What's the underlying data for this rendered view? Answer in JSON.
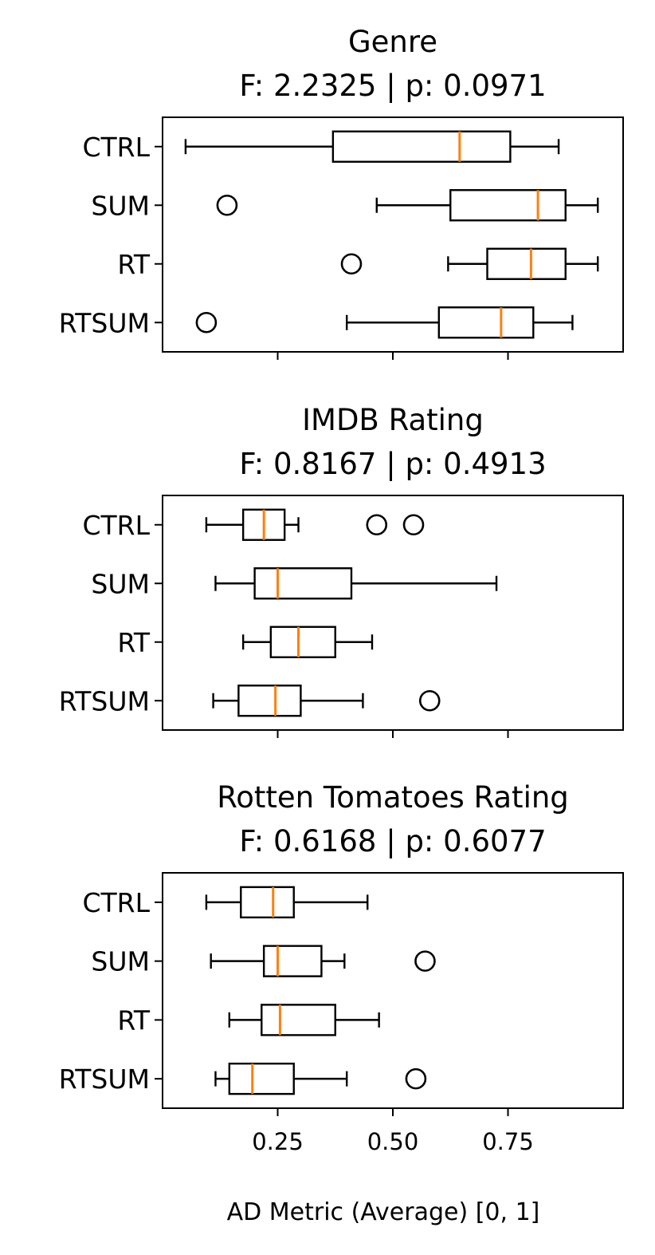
{
  "chart_data": [
    {
      "type": "boxplot",
      "title": "Genre",
      "subtitle": "F: 2.2325 | p: 0.0971",
      "categories": [
        "CTRL",
        "SUM",
        "RT",
        "RTSUM"
      ],
      "xlim": [
        0.0,
        1.0
      ],
      "xticks": [
        0.25,
        0.5,
        0.75
      ],
      "xtick_labels": [
        "0.25",
        "0.50",
        "0.75"
      ],
      "show_xtick_labels": false,
      "boxes": [
        {
          "label": "CTRL",
          "whisker_low": 0.05,
          "q1": 0.37,
          "median": 0.645,
          "q3": 0.755,
          "whisker_high": 0.86,
          "outliers": []
        },
        {
          "label": "SUM",
          "whisker_low": 0.465,
          "q1": 0.625,
          "median": 0.815,
          "q3": 0.875,
          "whisker_high": 0.945,
          "outliers": [
            0.14
          ]
        },
        {
          "label": "RT",
          "whisker_low": 0.62,
          "q1": 0.705,
          "median": 0.8,
          "q3": 0.875,
          "whisker_high": 0.945,
          "outliers": [
            0.41
          ]
        },
        {
          "label": "RTSUM",
          "whisker_low": 0.4,
          "q1": 0.6,
          "median": 0.735,
          "q3": 0.805,
          "whisker_high": 0.89,
          "outliers": [
            0.095
          ]
        }
      ]
    },
    {
      "type": "boxplot",
      "title": "IMDB Rating",
      "subtitle": "F: 0.8167 | p: 0.4913",
      "categories": [
        "CTRL",
        "SUM",
        "RT",
        "RTSUM"
      ],
      "xlim": [
        0.0,
        1.0
      ],
      "xticks": [
        0.25,
        0.5,
        0.75
      ],
      "xtick_labels": [
        "0.25",
        "0.50",
        "0.75"
      ],
      "show_xtick_labels": false,
      "boxes": [
        {
          "label": "CTRL",
          "whisker_low": 0.095,
          "q1": 0.175,
          "median": 0.22,
          "q3": 0.265,
          "whisker_high": 0.295,
          "outliers": [
            0.465,
            0.545
          ]
        },
        {
          "label": "SUM",
          "whisker_low": 0.115,
          "q1": 0.2,
          "median": 0.25,
          "q3": 0.41,
          "whisker_high": 0.725,
          "outliers": []
        },
        {
          "label": "RT",
          "whisker_low": 0.175,
          "q1": 0.235,
          "median": 0.295,
          "q3": 0.375,
          "whisker_high": 0.455,
          "outliers": []
        },
        {
          "label": "RTSUM",
          "whisker_low": 0.11,
          "q1": 0.165,
          "median": 0.245,
          "q3": 0.3,
          "whisker_high": 0.435,
          "outliers": [
            0.58
          ]
        }
      ]
    },
    {
      "type": "boxplot",
      "title": "Rotten Tomatoes Rating",
      "subtitle": "F: 0.6168 | p: 0.6077",
      "categories": [
        "CTRL",
        "SUM",
        "RT",
        "RTSUM"
      ],
      "xlim": [
        0.0,
        1.0
      ],
      "xticks": [
        0.25,
        0.5,
        0.75
      ],
      "xtick_labels": [
        "0.25",
        "0.50",
        "0.75"
      ],
      "show_xtick_labels": true,
      "xlabel": "AD Metric (Average) [0, 1]",
      "boxes": [
        {
          "label": "CTRL",
          "whisker_low": 0.095,
          "q1": 0.17,
          "median": 0.24,
          "q3": 0.285,
          "whisker_high": 0.445,
          "outliers": []
        },
        {
          "label": "SUM",
          "whisker_low": 0.105,
          "q1": 0.22,
          "median": 0.25,
          "q3": 0.345,
          "whisker_high": 0.395,
          "outliers": [
            0.57
          ]
        },
        {
          "label": "RT",
          "whisker_low": 0.145,
          "q1": 0.215,
          "median": 0.255,
          "q3": 0.375,
          "whisker_high": 0.47,
          "outliers": []
        },
        {
          "label": "RTSUM",
          "whisker_low": 0.115,
          "q1": 0.145,
          "median": 0.195,
          "q3": 0.285,
          "whisker_high": 0.4,
          "outliers": [
            0.55
          ]
        }
      ]
    }
  ],
  "colors": {
    "box_edge": "#000000",
    "median": "#ff7f0e",
    "background": "#ffffff"
  }
}
